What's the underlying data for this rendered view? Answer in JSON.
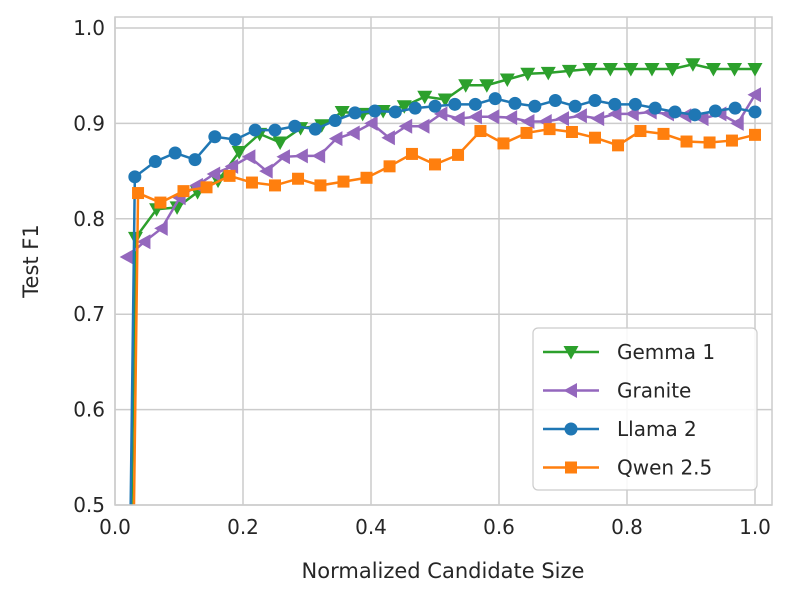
{
  "chart_data": {
    "type": "line",
    "title": "",
    "xlabel": "Normalized Candidate Size",
    "ylabel": "Test F1",
    "xlim": [
      0.0,
      1.025
    ],
    "ylim": [
      0.5,
      1.01
    ],
    "xticks": [
      "0.0",
      "0.2",
      "0.4",
      "0.6",
      "0.8",
      "1.0"
    ],
    "yticks": [
      "0.5",
      "0.6",
      "0.7",
      "0.8",
      "0.9",
      "1.0"
    ],
    "grid": true,
    "legend_placement": "lower-right",
    "series": [
      {
        "name": "Gemma 1",
        "color": "#2ca02c",
        "marker": "triangle-down",
        "x": [
          0.015,
          0.032,
          0.065,
          0.097,
          0.129,
          0.161,
          0.194,
          0.226,
          0.258,
          0.29,
          0.323,
          0.355,
          0.387,
          0.419,
          0.452,
          0.484,
          0.516,
          0.548,
          0.581,
          0.613,
          0.645,
          0.677,
          0.71,
          0.742,
          0.774,
          0.806,
          0.839,
          0.871,
          0.903,
          0.935,
          0.968,
          1.0
        ],
        "y": [
          0.0,
          0.78,
          0.81,
          0.812,
          0.828,
          0.84,
          0.87,
          0.889,
          0.88,
          0.895,
          0.898,
          0.912,
          0.91,
          0.913,
          0.918,
          0.928,
          0.925,
          0.94,
          0.94,
          0.946,
          0.952,
          0.953,
          0.955,
          0.957,
          0.957,
          0.957,
          0.957,
          0.957,
          0.962,
          0.957,
          0.957,
          0.957
        ]
      },
      {
        "name": "Granite",
        "color": "#9467bd",
        "marker": "triangle-left",
        "x": [
          0.019,
          0.046,
          0.073,
          0.101,
          0.128,
          0.155,
          0.183,
          0.21,
          0.237,
          0.264,
          0.292,
          0.319,
          0.346,
          0.373,
          0.401,
          0.428,
          0.455,
          0.482,
          0.51,
          0.537,
          0.564,
          0.591,
          0.619,
          0.646,
          0.673,
          0.7,
          0.728,
          0.755,
          0.782,
          0.809,
          0.837,
          0.864,
          0.891,
          0.918,
          0.946,
          0.973,
          1.0
        ],
        "y": [
          0.76,
          0.776,
          0.79,
          0.822,
          0.835,
          0.847,
          0.855,
          0.865,
          0.85,
          0.865,
          0.866,
          0.866,
          0.884,
          0.89,
          0.9,
          0.885,
          0.897,
          0.897,
          0.91,
          0.905,
          0.907,
          0.907,
          0.906,
          0.902,
          0.902,
          0.905,
          0.908,
          0.905,
          0.91,
          0.91,
          0.912,
          0.91,
          0.908,
          0.905,
          0.91,
          0.9,
          0.93
        ]
      },
      {
        "name": "Llama 2",
        "color": "#1f77b4",
        "marker": "circle",
        "x": [
          0.015,
          0.031,
          0.063,
          0.094,
          0.125,
          0.156,
          0.188,
          0.219,
          0.25,
          0.281,
          0.313,
          0.344,
          0.375,
          0.406,
          0.438,
          0.469,
          0.5,
          0.531,
          0.563,
          0.594,
          0.625,
          0.656,
          0.688,
          0.719,
          0.75,
          0.781,
          0.813,
          0.844,
          0.875,
          0.906,
          0.938,
          0.969,
          1.0
        ],
        "y": [
          0.0,
          0.844,
          0.86,
          0.869,
          0.862,
          0.886,
          0.883,
          0.893,
          0.893,
          0.897,
          0.894,
          0.903,
          0.911,
          0.913,
          0.912,
          0.916,
          0.918,
          0.92,
          0.92,
          0.926,
          0.921,
          0.918,
          0.924,
          0.918,
          0.924,
          0.92,
          0.92,
          0.916,
          0.912,
          0.909,
          0.913,
          0.916,
          0.912
        ]
      },
      {
        "name": "Qwen 2.5",
        "color": "#ff7f0e",
        "marker": "square",
        "x": [
          0.02,
          0.036,
          0.071,
          0.107,
          0.143,
          0.179,
          0.214,
          0.25,
          0.286,
          0.321,
          0.357,
          0.393,
          0.429,
          0.464,
          0.5,
          0.536,
          0.571,
          0.607,
          0.643,
          0.679,
          0.714,
          0.75,
          0.786,
          0.821,
          0.857,
          0.893,
          0.929,
          0.964,
          1.0
        ],
        "y": [
          0.0,
          0.827,
          0.817,
          0.829,
          0.833,
          0.845,
          0.838,
          0.835,
          0.842,
          0.835,
          0.839,
          0.843,
          0.855,
          0.868,
          0.857,
          0.867,
          0.892,
          0.879,
          0.89,
          0.894,
          0.891,
          0.885,
          0.877,
          0.892,
          0.889,
          0.881,
          0.88,
          0.882,
          0.888
        ]
      }
    ]
  }
}
